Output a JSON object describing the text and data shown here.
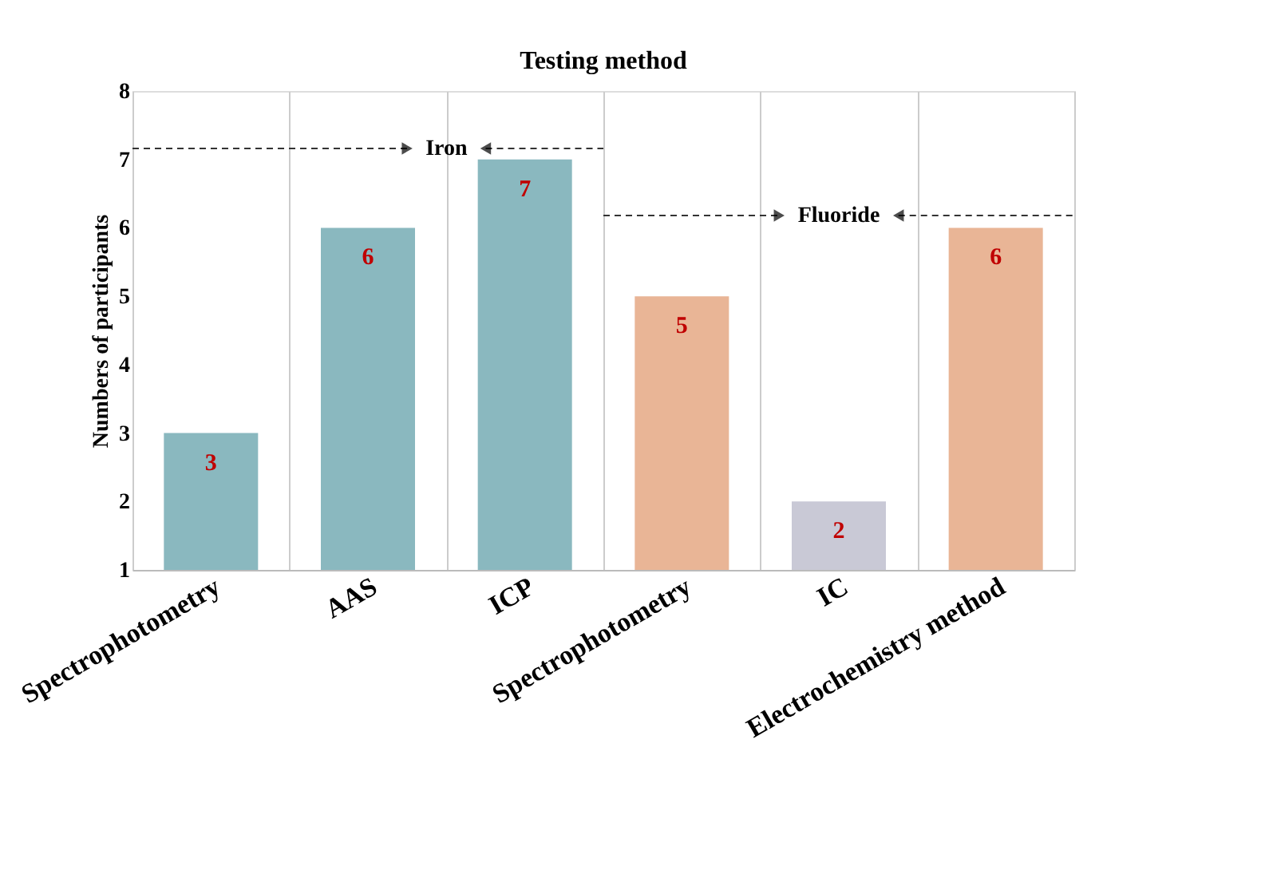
{
  "chart_data": {
    "type": "bar",
    "title": "Testing method",
    "ylabel": "Numbers of participants",
    "categories": [
      "Spectrophotometry",
      "AAS",
      "ICP",
      "Spectrophotometry",
      "IC",
      "Electrochemistry method"
    ],
    "values": [
      3,
      6,
      7,
      5,
      2,
      6
    ],
    "colors": [
      "#8ab8bf",
      "#8ab8bf",
      "#8ab8bf",
      "#e9b596",
      "#c9c9d6",
      "#e9b596"
    ],
    "ylim": [
      1,
      8
    ],
    "yticks": [
      1,
      2,
      3,
      4,
      5,
      6,
      7,
      8
    ],
    "grid": "x",
    "data_labels": true,
    "legend": false,
    "annotations": [
      "Iron",
      "Fluoride"
    ]
  }
}
